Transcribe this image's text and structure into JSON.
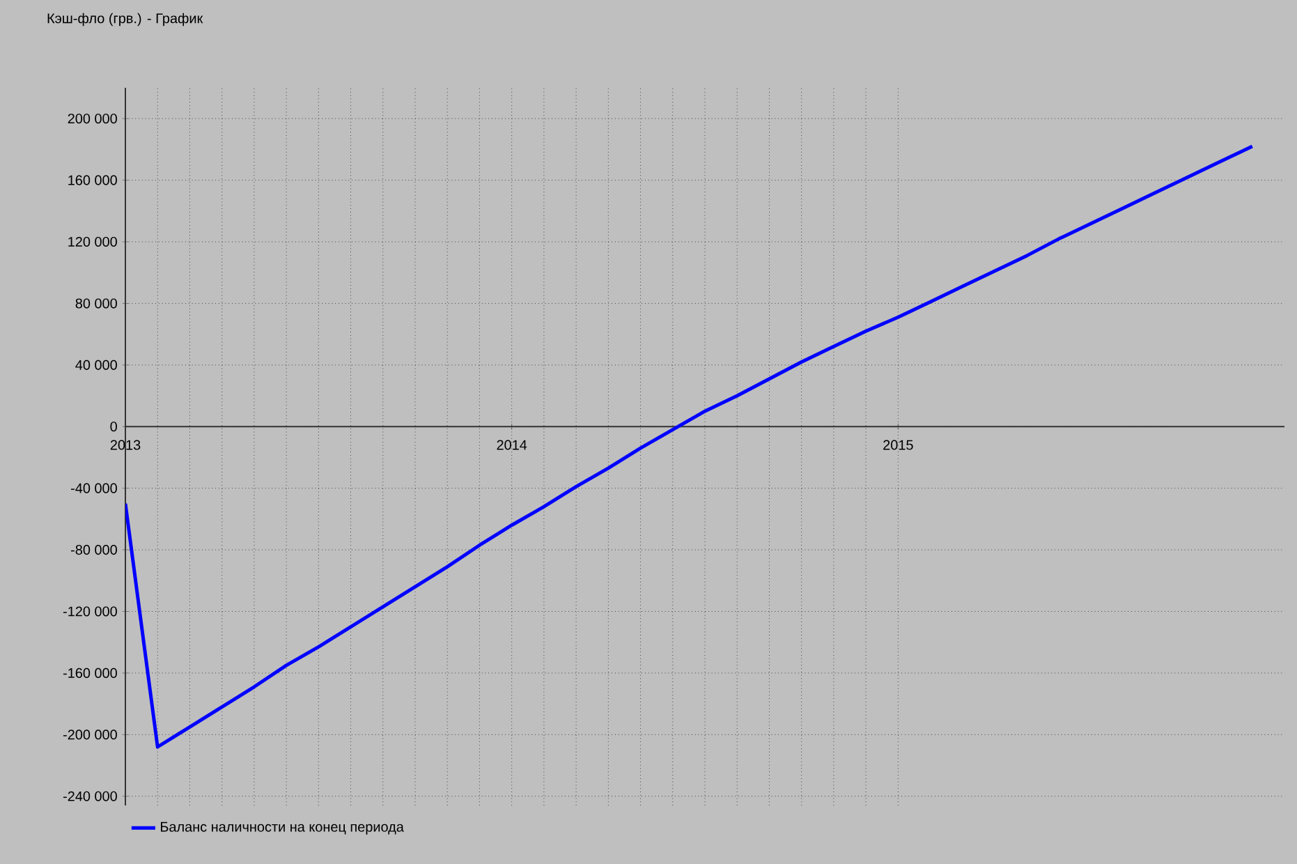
{
  "chart_data": {
    "type": "line",
    "title": "Кэш-фло (грв.) - График",
    "x": [
      "2013-01",
      "2013-02",
      "2013-03",
      "2013-04",
      "2013-05",
      "2013-06",
      "2013-07",
      "2013-08",
      "2013-09",
      "2013-10",
      "2013-11",
      "2013-12",
      "2014-01",
      "2014-02",
      "2014-03",
      "2014-04",
      "2014-05",
      "2014-06",
      "2014-07",
      "2014-08",
      "2014-09",
      "2014-10",
      "2014-11",
      "2014-12",
      "2015-01",
      "2015-02",
      "2015-03",
      "2015-04",
      "2015-05",
      "2015-06",
      "2015-07",
      "2015-08",
      "2015-09",
      "2015-10",
      "2015-11",
      "2015-12"
    ],
    "series": [
      {
        "name": "Баланс наличности на конец периода",
        "color": "#0000ff",
        "values": [
          -50000,
          -208000,
          -195000,
          -182000,
          -169000,
          -155000,
          -143000,
          -130000,
          -117000,
          -104000,
          -91000,
          -77000,
          -64000,
          -52000,
          -39000,
          -27000,
          -14000,
          -2000,
          10000,
          20000,
          31000,
          42000,
          52000,
          62000,
          71000,
          81000,
          91000,
          101000,
          111000,
          122000,
          132000,
          142000,
          152000,
          162000,
          172000,
          182000
        ]
      }
    ],
    "xlim": [
      "2013-01",
      "2016-01"
    ],
    "xticks": [
      "2013",
      "2014",
      "2015"
    ],
    "ylim": [
      -246000,
      220000
    ],
    "yticks": [
      {
        "value": -240000,
        "label": "-240 000"
      },
      {
        "value": -200000,
        "label": "-200 000"
      },
      {
        "value": -160000,
        "label": "-160 000"
      },
      {
        "value": -120000,
        "label": "-120 000"
      },
      {
        "value": -80000,
        "label": "-80 000"
      },
      {
        "value": -40000,
        "label": "-40 000"
      },
      0,
      {
        "value": 40000,
        "label": "40 000"
      },
      {
        "value": 80000,
        "label": "80 000"
      },
      {
        "value": 120000,
        "label": "120 000"
      },
      {
        "value": 160000,
        "label": "160 000"
      },
      {
        "value": 200000,
        "label": "200 000"
      }
    ],
    "grid": true,
    "legend": "bottom",
    "marker": "none",
    "line_style": "solid"
  }
}
